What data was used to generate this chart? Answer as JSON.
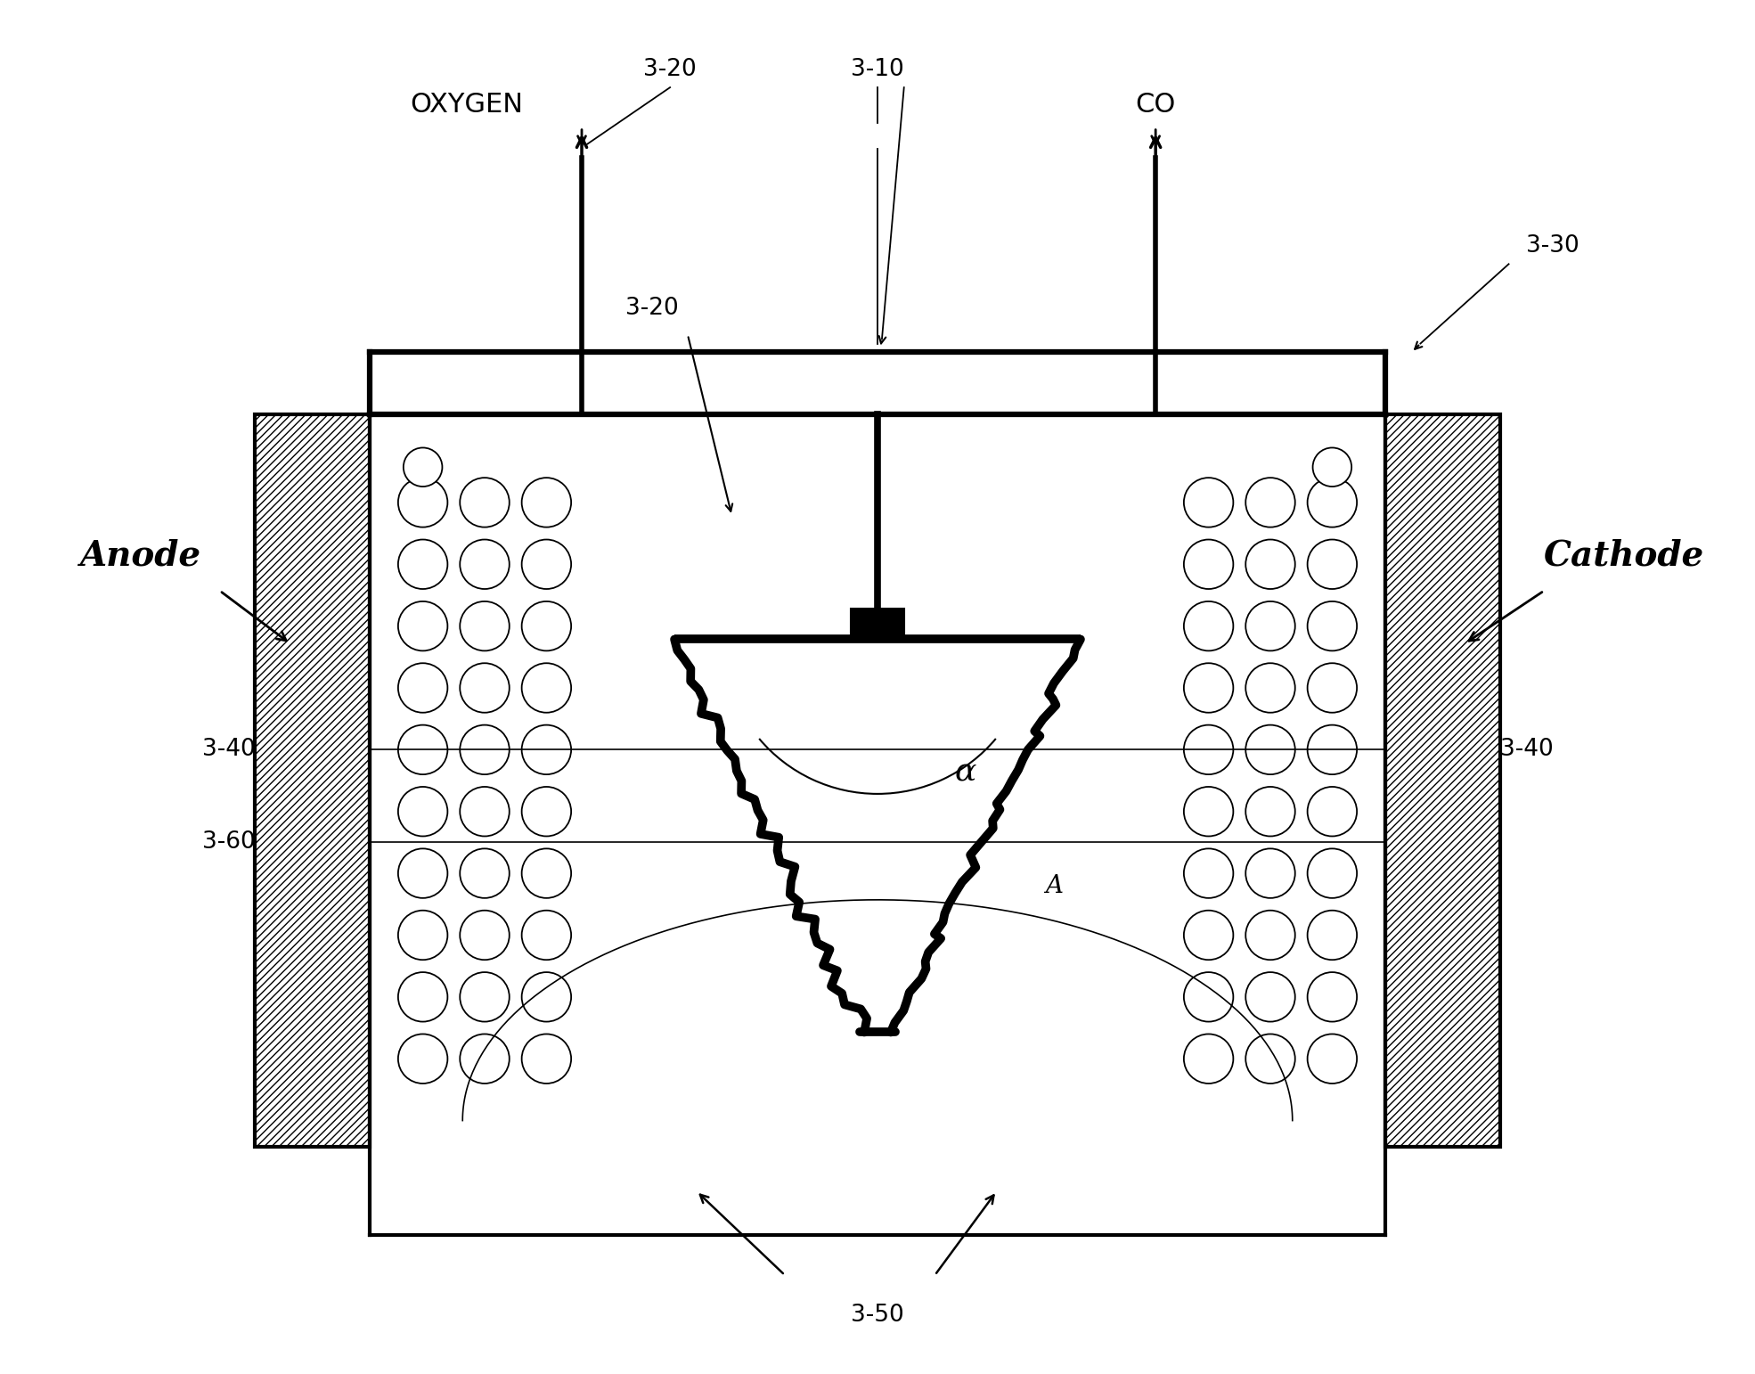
{
  "bg_color": "#ffffff",
  "line_color": "#000000",
  "labels": {
    "anode": "Anode",
    "cathode": "Cathode",
    "oxygen": "OXYGEN",
    "co": "CO",
    "label_310": "3-10",
    "label_320_top": "3-20",
    "label_320_side": "3-20",
    "label_330": "3-30",
    "label_340_left": "3-40",
    "label_340_right": "3-40",
    "label_350": "3-50",
    "label_360": "3-60",
    "alpha": "α",
    "A": "A"
  },
  "figsize": [
    19.7,
    15.42
  ],
  "dpi": 100
}
